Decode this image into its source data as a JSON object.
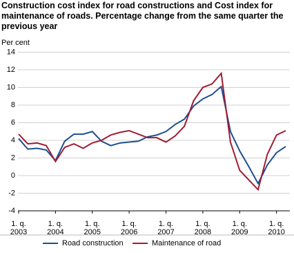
{
  "chart_data": {
    "type": "line",
    "title": "Construction cost index for road constructions and Cost index for maintenance of roads. Percentage change from the same quarter the previous year",
    "y_label": "Per cent",
    "categories": [
      "1. q.\n2003",
      null,
      null,
      null,
      "1. q.\n2004",
      null,
      null,
      null,
      "1. q.\n2005",
      null,
      null,
      null,
      "1. q.\n2006",
      null,
      null,
      null,
      "1. q.\n2007",
      null,
      null,
      null,
      "1. q.\n2008",
      null,
      null,
      null,
      "1. q.\n2009",
      null,
      null,
      null,
      "1. q.\n2010",
      null
    ],
    "series": [
      {
        "name": "Road construction",
        "color": "#1d4e8f",
        "values": [
          4.2,
          3.0,
          3.1,
          2.9,
          1.7,
          3.9,
          4.7,
          4.7,
          5.0,
          3.9,
          3.4,
          3.7,
          3.8,
          3.9,
          4.4,
          4.6,
          5.0,
          5.8,
          6.4,
          7.9,
          8.7,
          9.2,
          10.1,
          5.0,
          2.8,
          1.0,
          -0.9,
          1.2,
          2.6,
          3.3
        ]
      },
      {
        "name": "Maintenance of road",
        "color": "#a01c34",
        "values": [
          4.7,
          3.6,
          3.7,
          3.4,
          1.6,
          3.2,
          3.6,
          3.1,
          3.7,
          4.0,
          4.6,
          4.9,
          5.1,
          4.7,
          4.3,
          4.3,
          3.8,
          4.5,
          5.6,
          8.5,
          10.0,
          10.4,
          11.6,
          3.8,
          0.6,
          -0.5,
          -1.6,
          2.4,
          4.6,
          5.1
        ]
      }
    ],
    "ylim": [
      -4,
      14
    ],
    "yticks": [
      -4,
      -2,
      0,
      2,
      4,
      6,
      8,
      10,
      12,
      14
    ],
    "grid": true
  }
}
